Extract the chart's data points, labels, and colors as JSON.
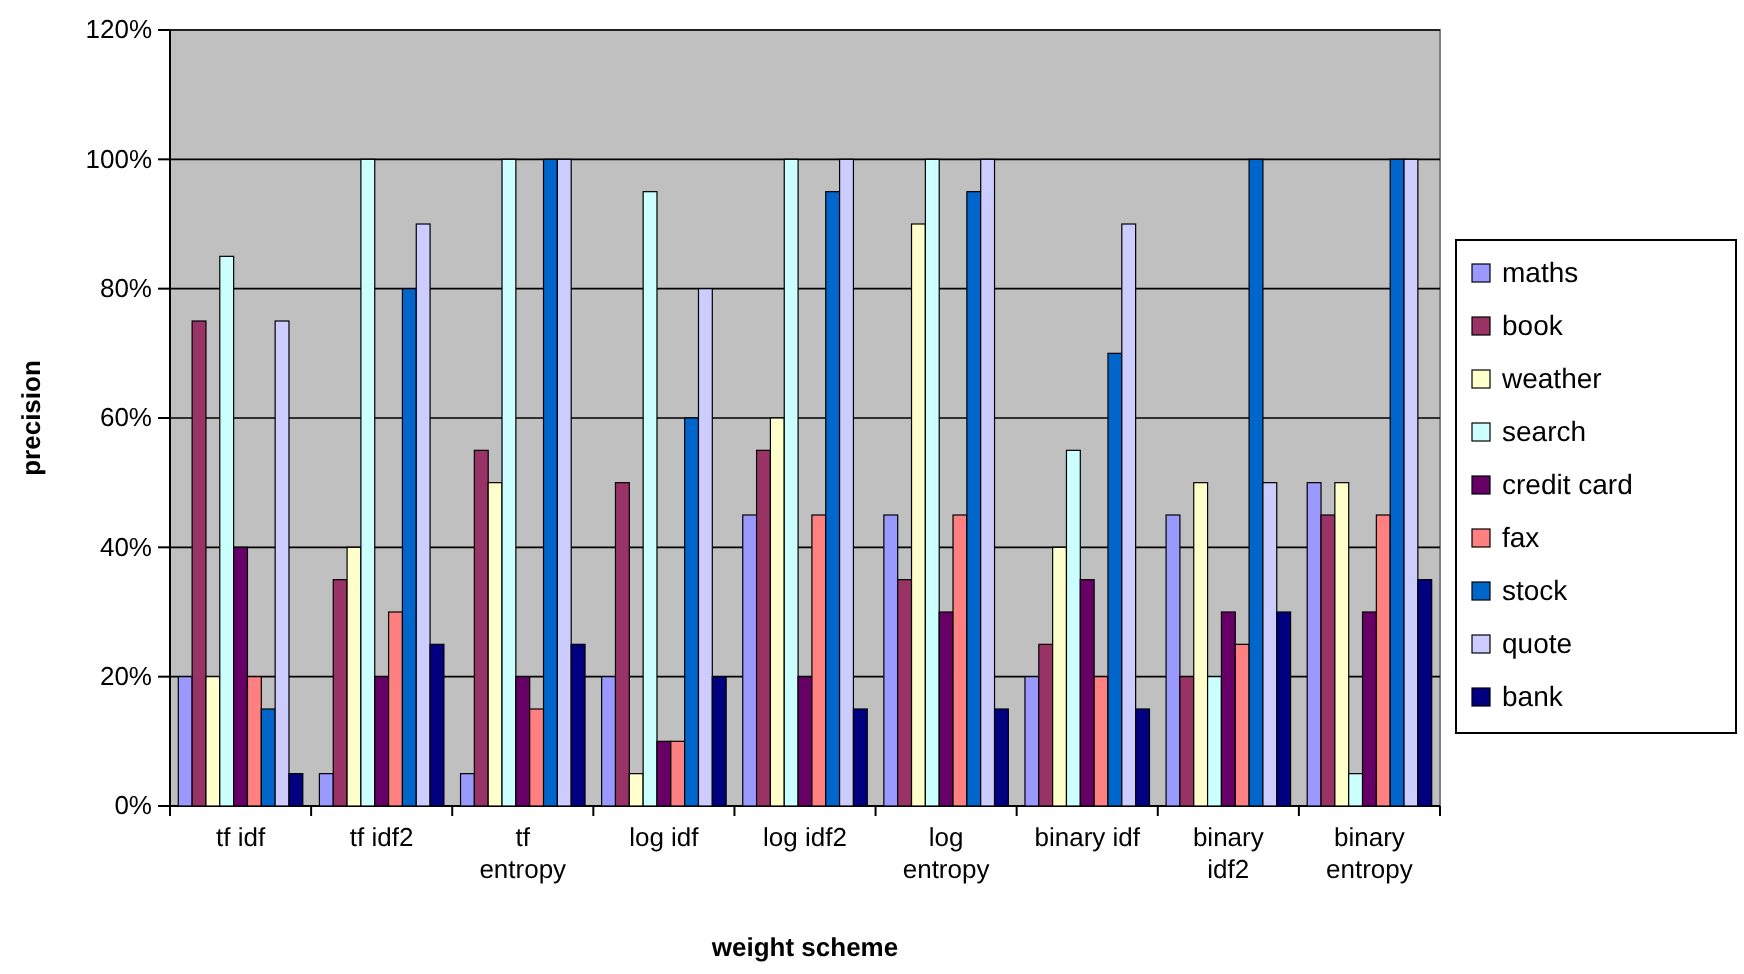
{
  "chart_data": {
    "type": "bar",
    "xlabel": "weight scheme",
    "ylabel": "precision",
    "categories": [
      "tf idf",
      "tf idf2",
      "tf\nentropy",
      "log idf",
      "log idf2",
      "log\nentropy",
      "binary idf",
      "binary\nidf2",
      "binary\nentropy"
    ],
    "series": [
      {
        "name": "maths",
        "color": "#9999ff",
        "values": [
          20,
          5,
          5,
          20,
          45,
          45,
          20,
          45,
          50
        ]
      },
      {
        "name": "book",
        "color": "#993366",
        "values": [
          75,
          35,
          55,
          50,
          55,
          35,
          25,
          20,
          45
        ]
      },
      {
        "name": "weather",
        "color": "#ffffcc",
        "values": [
          20,
          40,
          50,
          5,
          60,
          90,
          40,
          50,
          50
        ]
      },
      {
        "name": "search",
        "color": "#ccffff",
        "values": [
          85,
          100,
          100,
          95,
          100,
          100,
          55,
          20,
          5
        ]
      },
      {
        "name": "credit card",
        "color": "#660066",
        "values": [
          40,
          20,
          20,
          10,
          20,
          30,
          35,
          30,
          30
        ]
      },
      {
        "name": "fax",
        "color": "#ff8080",
        "values": [
          20,
          30,
          15,
          10,
          45,
          45,
          20,
          25,
          45
        ]
      },
      {
        "name": "stock",
        "color": "#0066cc",
        "values": [
          15,
          80,
          100,
          60,
          95,
          95,
          70,
          100,
          100
        ]
      },
      {
        "name": "quote",
        "color": "#ccccff",
        "values": [
          75,
          90,
          100,
          80,
          100,
          100,
          90,
          50,
          100
        ]
      },
      {
        "name": "bank",
        "color": "#000080",
        "values": [
          5,
          25,
          25,
          20,
          15,
          15,
          15,
          30,
          35
        ]
      }
    ],
    "ylim": [
      0,
      120
    ],
    "yticks": [
      {
        "value": 0,
        "label": "0%"
      },
      {
        "value": 20,
        "label": "20%"
      },
      {
        "value": 40,
        "label": "40%"
      },
      {
        "value": 60,
        "label": "60%"
      },
      {
        "value": 80,
        "label": "80%"
      },
      {
        "value": 100,
        "label": "100%"
      },
      {
        "value": 120,
        "label": "120%"
      }
    ],
    "grid": "y",
    "legend": "right"
  }
}
